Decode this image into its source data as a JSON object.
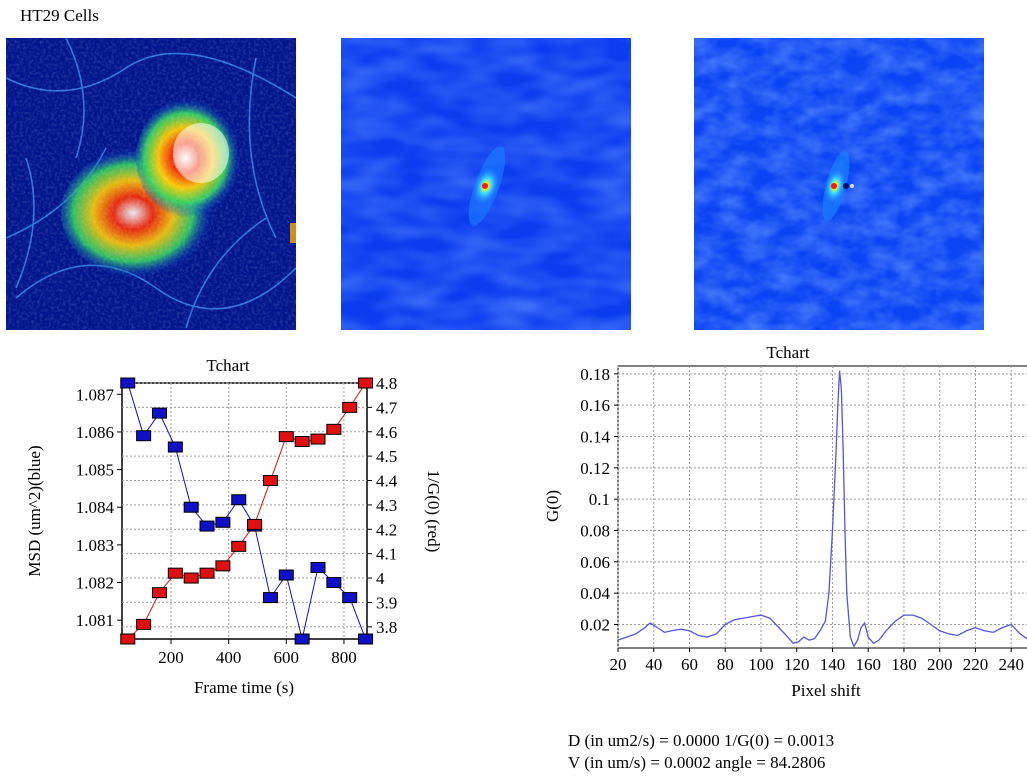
{
  "header": {
    "title": "HT29 Cells"
  },
  "colors": {
    "blue_series": "#1010c8",
    "red_series": "#e01010",
    "g0_line": "#5555dd",
    "plot_bg": "#ffffff",
    "grid": "#9a9a9a"
  },
  "chart_data": [
    {
      "type": "line",
      "title": "Tchart",
      "xlabel": "Frame time (s)",
      "ylabel": "MSD (um^2)(blue)",
      "y2label": "1/G(0) (red)",
      "xlim": [
        30,
        880
      ],
      "ylim": [
        1.0805,
        1.0873
      ],
      "y2lim": [
        3.75,
        4.8
      ],
      "x_ticks": [
        200,
        400,
        600,
        800
      ],
      "y_ticks": [
        1.081,
        1.082,
        1.083,
        1.084,
        1.085,
        1.086,
        1.087
      ],
      "y2_ticks": [
        3.8,
        3.9,
        4,
        4.1,
        4.2,
        4.3,
        4.4,
        4.5,
        4.6,
        4.7,
        4.8
      ],
      "grid": true,
      "series": [
        {
          "name": "MSD (um^2)(blue)",
          "axis": "left",
          "x": [
            50,
            105,
            160,
            215,
            270,
            325,
            380,
            435,
            490,
            545,
            600,
            655,
            710,
            765,
            820,
            875
          ],
          "y": [
            1.0873,
            1.0859,
            1.0865,
            1.0856,
            1.084,
            1.0835,
            1.0836,
            1.0842,
            1.0835,
            1.0816,
            1.0822,
            1.0805,
            1.0824,
            1.082,
            1.0816,
            1.0805
          ]
        },
        {
          "name": "1/G(0) (red)",
          "axis": "right",
          "x": [
            50,
            105,
            160,
            215,
            270,
            325,
            380,
            435,
            490,
            545,
            600,
            655,
            710,
            765,
            820,
            875
          ],
          "y": [
            3.75,
            3.81,
            3.94,
            4.02,
            4.0,
            4.02,
            4.05,
            4.13,
            4.22,
            4.4,
            4.58,
            4.56,
            4.57,
            4.61,
            4.7,
            4.8
          ]
        }
      ]
    },
    {
      "type": "line",
      "title": "Tchart",
      "xlabel": "Pixel shift",
      "ylabel": "G(0)",
      "xlim": [
        20,
        255
      ],
      "ylim": [
        0.005,
        0.185
      ],
      "x_ticks": [
        20,
        40,
        60,
        80,
        100,
        120,
        140,
        160,
        180,
        200,
        220,
        240
      ],
      "y_ticks": [
        0.02,
        0.04,
        0.06,
        0.08,
        0.1,
        0.12,
        0.14,
        0.16,
        0.18
      ],
      "grid": true,
      "series": [
        {
          "x": [
            20,
            25,
            30,
            35,
            38,
            42,
            46,
            50,
            55,
            60,
            65,
            70,
            75,
            80,
            85,
            90,
            95,
            100,
            105,
            110,
            115,
            118,
            121,
            124,
            127,
            130,
            133,
            136,
            138,
            140,
            142,
            143,
            144,
            145,
            146,
            147,
            148,
            150,
            152,
            154,
            156,
            158,
            160,
            163,
            166,
            170,
            175,
            180,
            185,
            190,
            195,
            200,
            205,
            210,
            215,
            220,
            225,
            230,
            235,
            240,
            245,
            250,
            255
          ],
          "y": [
            0.01,
            0.012,
            0.014,
            0.018,
            0.021,
            0.018,
            0.015,
            0.016,
            0.017,
            0.016,
            0.013,
            0.012,
            0.014,
            0.02,
            0.023,
            0.024,
            0.025,
            0.026,
            0.024,
            0.018,
            0.012,
            0.008,
            0.009,
            0.012,
            0.01,
            0.011,
            0.016,
            0.022,
            0.04,
            0.08,
            0.13,
            0.16,
            0.182,
            0.17,
            0.13,
            0.08,
            0.04,
            0.012,
            0.006,
            0.01,
            0.018,
            0.021,
            0.012,
            0.008,
            0.01,
            0.016,
            0.022,
            0.026,
            0.026,
            0.024,
            0.02,
            0.016,
            0.014,
            0.013,
            0.016,
            0.018,
            0.016,
            0.015,
            0.018,
            0.02,
            0.014,
            0.01,
            0.008
          ]
        }
      ]
    }
  ],
  "results": {
    "line1": "D (in um2/s) = 0.0000 1/G(0) = 0.0013",
    "line2": "V (in um/s) = 0.0002 angle = 84.2806"
  }
}
